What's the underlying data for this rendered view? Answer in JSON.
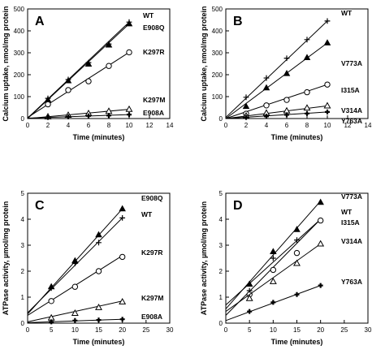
{
  "chart_data": [
    {
      "panel_label": "A",
      "type": "scatter",
      "xlabel": "Time (minutes)",
      "ylabel": "Calcium uptake, nmol/mg protein",
      "xlim": [
        0,
        14
      ],
      "ylim": [
        0,
        500
      ],
      "x_ticks": [
        0,
        2,
        4,
        6,
        8,
        10,
        12,
        14
      ],
      "y_ticks": [
        0,
        100,
        200,
        300,
        400,
        500
      ],
      "grid": false,
      "series": [
        {
          "name": "WT",
          "marker": "plus",
          "x": [
            2,
            4,
            6,
            8,
            10
          ],
          "y": [
            92,
            178,
            255,
            340,
            440
          ],
          "fit": [
            0,
            2,
            10,
            440
          ]
        },
        {
          "name": "E908Q",
          "marker": "triangle-filled",
          "x": [
            2,
            4,
            6,
            8,
            10
          ],
          "y": [
            85,
            172,
            248,
            335,
            432
          ],
          "fit": [
            0,
            0,
            10,
            432
          ]
        },
        {
          "name": "K297R",
          "marker": "circle-open",
          "x": [
            2,
            4,
            6,
            8,
            10
          ],
          "y": [
            65,
            130,
            170,
            240,
            302
          ],
          "fit": [
            0,
            5,
            10,
            302
          ]
        },
        {
          "name": "K297M",
          "marker": "triangle-open",
          "x": [
            2,
            4,
            6,
            8,
            10
          ],
          "y": [
            8,
            15,
            23,
            33,
            42
          ],
          "fit": [
            0,
            0,
            10,
            42
          ]
        },
        {
          "name": "E908A",
          "marker": "cross-bold",
          "x": [
            2,
            4,
            6,
            8,
            10
          ],
          "y": [
            5,
            8,
            12,
            14,
            18
          ],
          "fit": [
            0,
            2,
            10,
            18
          ]
        }
      ]
    },
    {
      "panel_label": "B",
      "type": "scatter",
      "xlabel": "Time (minutes)",
      "ylabel": "Calcium uptake, nmol/mg protein",
      "xlim": [
        0,
        14
      ],
      "ylim": [
        0,
        500
      ],
      "x_ticks": [
        0,
        2,
        4,
        6,
        8,
        10,
        12,
        14
      ],
      "y_ticks": [
        0,
        100,
        200,
        300,
        400,
        500
      ],
      "grid": false,
      "series": [
        {
          "name": "WT",
          "marker": "plus",
          "x": [
            2,
            4,
            6,
            8,
            10
          ],
          "y": [
            97,
            185,
            275,
            360,
            445
          ],
          "fit": [
            0,
            5,
            10,
            445
          ]
        },
        {
          "name": "V773A",
          "marker": "triangle-filled",
          "x": [
            2,
            4,
            6,
            8,
            10
          ],
          "y": [
            55,
            140,
            205,
            278,
            345
          ],
          "fit": [
            0,
            0,
            10,
            345
          ]
        },
        {
          "name": "I315A",
          "marker": "circle-open",
          "x": [
            2,
            4,
            6,
            8,
            10
          ],
          "y": [
            22,
            60,
            85,
            120,
            155
          ],
          "fit": [
            0,
            0,
            10,
            155
          ]
        },
        {
          "name": "V314A",
          "marker": "triangle-open",
          "x": [
            2,
            4,
            6,
            8,
            10
          ],
          "y": [
            12,
            25,
            35,
            48,
            58
          ],
          "fit": [
            0,
            0,
            10,
            58
          ]
        },
        {
          "name": "Y763A",
          "marker": "cross-bold",
          "x": [
            2,
            4,
            6,
            8,
            10
          ],
          "y": [
            5,
            10,
            17,
            23,
            30
          ],
          "fit": [
            0,
            0,
            10,
            30
          ]
        }
      ]
    },
    {
      "panel_label": "C",
      "type": "scatter",
      "xlabel": "Time (minutes)",
      "ylabel": "ATPase activity, µmol/mg protein",
      "xlim": [
        0,
        30
      ],
      "ylim": [
        0,
        5
      ],
      "x_ticks": [
        0,
        5,
        10,
        15,
        20,
        25,
        30
      ],
      "y_ticks": [
        0,
        1,
        2,
        3,
        4,
        5
      ],
      "grid": false,
      "series": [
        {
          "name": "E908Q",
          "marker": "triangle-filled",
          "x": [
            5,
            10,
            15,
            20
          ],
          "y": [
            1.4,
            2.4,
            3.4,
            4.4
          ],
          "fit": [
            0,
            0.35,
            20,
            4.4
          ]
        },
        {
          "name": "WT",
          "marker": "plus",
          "x": [
            5,
            10,
            15,
            20
          ],
          "y": [
            1.35,
            2.3,
            3.1,
            4.05
          ],
          "fit": [
            0,
            0.4,
            20,
            4.05
          ]
        },
        {
          "name": "K297R",
          "marker": "circle-open",
          "x": [
            5,
            10,
            15,
            20
          ],
          "y": [
            0.85,
            1.4,
            2.0,
            2.55
          ],
          "fit": [
            0,
            0.3,
            20,
            2.6
          ]
        },
        {
          "name": "K297M",
          "marker": "triangle-open",
          "x": [
            5,
            10,
            15,
            20
          ],
          "y": [
            0.2,
            0.38,
            0.6,
            0.82
          ],
          "fit": [
            0,
            0.05,
            20,
            0.85
          ]
        },
        {
          "name": "E908A",
          "marker": "cross-bold",
          "x": [
            5,
            10,
            15,
            20
          ],
          "y": [
            0.05,
            0.1,
            0.12,
            0.15
          ],
          "fit": [
            0,
            0.02,
            20,
            0.15
          ]
        }
      ]
    },
    {
      "panel_label": "D",
      "type": "scatter",
      "xlabel": "Time (minutes)",
      "ylabel": "ATPase activity, µmol/mg protein",
      "xlim": [
        0,
        30
      ],
      "ylim": [
        0,
        5
      ],
      "x_ticks": [
        0,
        5,
        10,
        15,
        20,
        25,
        30
      ],
      "y_ticks": [
        0,
        1,
        2,
        3,
        4,
        5
      ],
      "grid": false,
      "series": [
        {
          "name": "V773A",
          "marker": "triangle-filled",
          "x": [
            5,
            10,
            15,
            20
          ],
          "y": [
            1.5,
            2.75,
            3.6,
            4.65
          ],
          "fit": [
            0,
            0.55,
            20,
            4.7
          ]
        },
        {
          "name": "WT",
          "marker": "plus",
          "x": [
            5,
            10,
            15,
            20
          ],
          "y": [
            1.25,
            2.5,
            3.2,
            3.95
          ],
          "fit": [
            0,
            0.3,
            20,
            4.0
          ]
        },
        {
          "name": "I315A",
          "marker": "circle-open",
          "x": [
            5,
            10,
            15,
            20
          ],
          "y": [
            1.1,
            2.05,
            2.7,
            3.95
          ],
          "fit": [
            0,
            0.7,
            20,
            4.0
          ]
        },
        {
          "name": "V314A",
          "marker": "triangle-open",
          "x": [
            5,
            10,
            15,
            20
          ],
          "y": [
            0.95,
            1.6,
            2.3,
            3.05
          ],
          "fit": [
            0,
            0.45,
            20,
            3.05
          ]
        },
        {
          "name": "Y763A",
          "marker": "cross-bold",
          "x": [
            5,
            10,
            15,
            20
          ],
          "y": [
            0.45,
            0.8,
            1.1,
            1.45
          ],
          "fit": [
            0,
            0.1,
            20,
            1.45
          ]
        }
      ]
    }
  ]
}
